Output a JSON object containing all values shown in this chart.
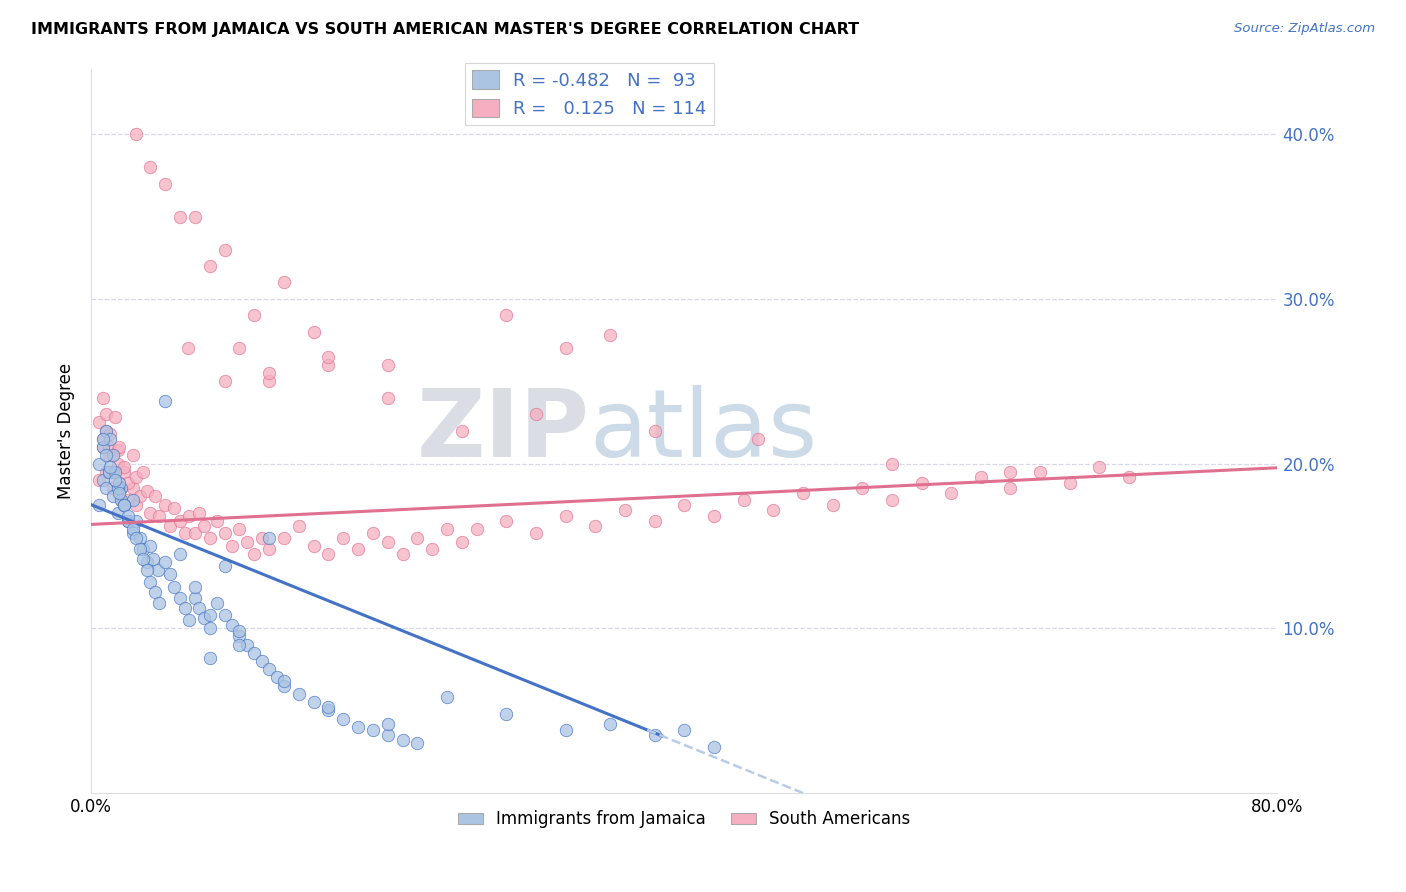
{
  "title": "IMMIGRANTS FROM JAMAICA VS SOUTH AMERICAN MASTER'S DEGREE CORRELATION CHART",
  "source": "Source: ZipAtlas.com",
  "ylabel": "Master's Degree",
  "legend_label1": "Immigrants from Jamaica",
  "legend_label2": "South Americans",
  "r1": "-0.482",
  "n1": "93",
  "r2": "0.125",
  "n2": "114",
  "xlim": [
    0.0,
    0.8
  ],
  "ylim": [
    0.0,
    0.44
  ],
  "yticks": [
    0.1,
    0.2,
    0.3,
    0.4
  ],
  "ytick_labels": [
    "10.0%",
    "20.0%",
    "30.0%",
    "40.0%"
  ],
  "color_blue": "#aac4e2",
  "color_pink": "#f5afc0",
  "line_blue": "#4472c4",
  "line_pink": "#e07090",
  "line_dashed_color": "#b8cce8",
  "watermark_zip": "ZIP",
  "watermark_atlas": "atlas",
  "background": "#ffffff",
  "grid_color": "#d8d8e8",
  "jamaica_x": [
    0.005,
    0.008,
    0.01,
    0.012,
    0.015,
    0.018,
    0.02,
    0.022,
    0.025,
    0.028,
    0.005,
    0.008,
    0.012,
    0.015,
    0.018,
    0.02,
    0.01,
    0.013,
    0.016,
    0.019,
    0.022,
    0.025,
    0.028,
    0.03,
    0.033,
    0.035,
    0.038,
    0.04,
    0.042,
    0.045,
    0.008,
    0.01,
    0.013,
    0.016,
    0.019,
    0.022,
    0.025,
    0.028,
    0.03,
    0.033,
    0.035,
    0.038,
    0.04,
    0.043,
    0.046,
    0.05,
    0.053,
    0.056,
    0.06,
    0.063,
    0.066,
    0.07,
    0.073,
    0.076,
    0.08,
    0.085,
    0.09,
    0.095,
    0.1,
    0.105,
    0.11,
    0.115,
    0.12,
    0.125,
    0.13,
    0.14,
    0.15,
    0.16,
    0.17,
    0.18,
    0.19,
    0.2,
    0.21,
    0.22,
    0.05,
    0.06,
    0.07,
    0.08,
    0.09,
    0.1,
    0.13,
    0.16,
    0.2,
    0.24,
    0.28,
    0.32,
    0.35,
    0.38,
    0.4,
    0.42,
    0.12,
    0.1,
    0.08
  ],
  "jamaica_y": [
    0.175,
    0.19,
    0.185,
    0.195,
    0.18,
    0.17,
    0.185,
    0.175,
    0.165,
    0.178,
    0.2,
    0.21,
    0.195,
    0.205,
    0.185,
    0.178,
    0.22,
    0.215,
    0.195,
    0.188,
    0.175,
    0.165,
    0.158,
    0.165,
    0.155,
    0.148,
    0.14,
    0.15,
    0.142,
    0.135,
    0.215,
    0.205,
    0.198,
    0.19,
    0.182,
    0.175,
    0.168,
    0.16,
    0.155,
    0.148,
    0.142,
    0.135,
    0.128,
    0.122,
    0.115,
    0.14,
    0.133,
    0.125,
    0.118,
    0.112,
    0.105,
    0.118,
    0.112,
    0.106,
    0.1,
    0.115,
    0.108,
    0.102,
    0.095,
    0.09,
    0.085,
    0.08,
    0.075,
    0.07,
    0.065,
    0.06,
    0.055,
    0.05,
    0.045,
    0.04,
    0.038,
    0.035,
    0.032,
    0.03,
    0.238,
    0.145,
    0.125,
    0.108,
    0.138,
    0.09,
    0.068,
    0.052,
    0.042,
    0.058,
    0.048,
    0.038,
    0.042,
    0.035,
    0.038,
    0.028,
    0.155,
    0.098,
    0.082
  ],
  "sa_x": [
    0.005,
    0.008,
    0.01,
    0.012,
    0.015,
    0.018,
    0.02,
    0.005,
    0.008,
    0.01,
    0.012,
    0.015,
    0.018,
    0.02,
    0.022,
    0.025,
    0.028,
    0.03,
    0.008,
    0.01,
    0.013,
    0.016,
    0.019,
    0.022,
    0.025,
    0.028,
    0.03,
    0.033,
    0.035,
    0.038,
    0.04,
    0.043,
    0.046,
    0.05,
    0.053,
    0.056,
    0.06,
    0.063,
    0.066,
    0.07,
    0.073,
    0.076,
    0.08,
    0.085,
    0.09,
    0.095,
    0.1,
    0.105,
    0.11,
    0.115,
    0.12,
    0.13,
    0.14,
    0.15,
    0.16,
    0.17,
    0.18,
    0.19,
    0.2,
    0.21,
    0.22,
    0.23,
    0.24,
    0.25,
    0.26,
    0.28,
    0.3,
    0.32,
    0.34,
    0.36,
    0.38,
    0.4,
    0.42,
    0.44,
    0.46,
    0.48,
    0.5,
    0.52,
    0.54,
    0.56,
    0.58,
    0.6,
    0.62,
    0.64,
    0.66,
    0.68,
    0.7,
    0.05,
    0.07,
    0.09,
    0.11,
    0.13,
    0.15,
    0.03,
    0.04,
    0.06,
    0.08,
    0.1,
    0.12,
    0.16,
    0.2,
    0.25,
    0.3,
    0.38,
    0.45,
    0.54,
    0.62,
    0.28,
    0.35,
    0.32,
    0.2,
    0.16,
    0.12,
    0.09,
    0.065
  ],
  "sa_y": [
    0.19,
    0.21,
    0.195,
    0.205,
    0.185,
    0.2,
    0.178,
    0.225,
    0.215,
    0.22,
    0.21,
    0.195,
    0.208,
    0.185,
    0.195,
    0.178,
    0.185,
    0.175,
    0.24,
    0.23,
    0.218,
    0.228,
    0.21,
    0.198,
    0.188,
    0.205,
    0.192,
    0.18,
    0.195,
    0.183,
    0.17,
    0.18,
    0.168,
    0.175,
    0.162,
    0.173,
    0.165,
    0.158,
    0.168,
    0.158,
    0.17,
    0.162,
    0.155,
    0.165,
    0.158,
    0.15,
    0.16,
    0.152,
    0.145,
    0.155,
    0.148,
    0.155,
    0.162,
    0.15,
    0.145,
    0.155,
    0.148,
    0.158,
    0.152,
    0.145,
    0.155,
    0.148,
    0.16,
    0.152,
    0.16,
    0.165,
    0.158,
    0.168,
    0.162,
    0.172,
    0.165,
    0.175,
    0.168,
    0.178,
    0.172,
    0.182,
    0.175,
    0.185,
    0.178,
    0.188,
    0.182,
    0.192,
    0.185,
    0.195,
    0.188,
    0.198,
    0.192,
    0.37,
    0.35,
    0.33,
    0.29,
    0.31,
    0.28,
    0.4,
    0.38,
    0.35,
    0.32,
    0.27,
    0.25,
    0.26,
    0.24,
    0.22,
    0.23,
    0.22,
    0.215,
    0.2,
    0.195,
    0.29,
    0.278,
    0.27,
    0.26,
    0.265,
    0.255,
    0.25,
    0.27
  ]
}
